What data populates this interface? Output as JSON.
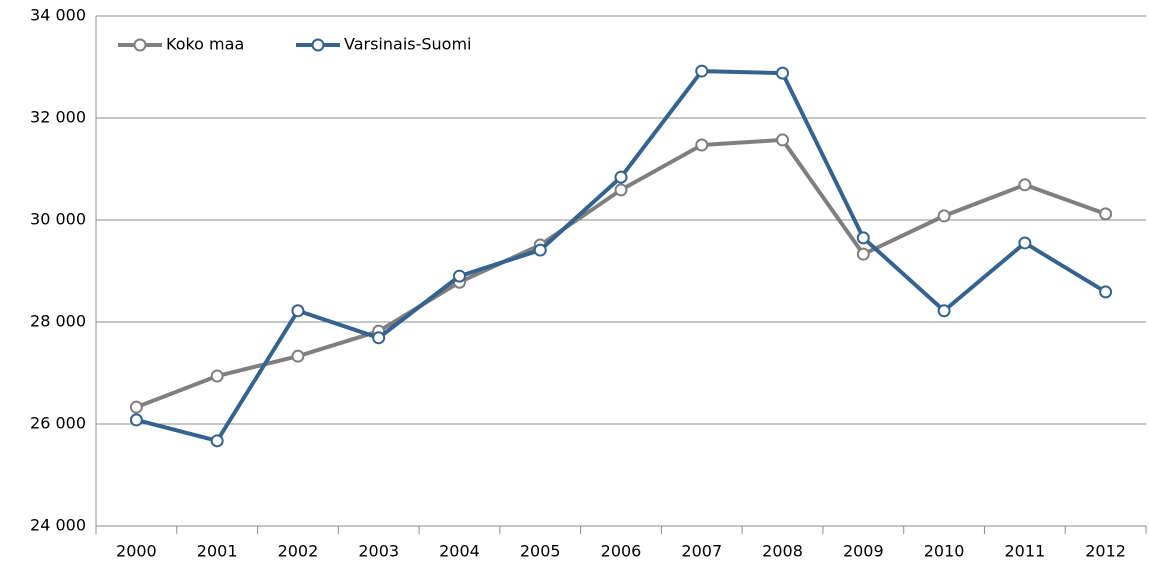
{
  "chart_data": {
    "type": "line",
    "categories": [
      "2000",
      "2001",
      "2002",
      "2003",
      "2004",
      "2005",
      "2006",
      "2007",
      "2008",
      "2009",
      "2010",
      "2011",
      "2012"
    ],
    "series": [
      {
        "name": "Koko maa",
        "color": "#7f7f7f",
        "values": [
          26330,
          26940,
          27330,
          27820,
          28780,
          29510,
          30590,
          31470,
          31570,
          29330,
          30080,
          30690,
          30120
        ]
      },
      {
        "name": "Varsinais-Suomi",
        "color": "#35628f",
        "values": [
          26080,
          25670,
          28220,
          27690,
          28900,
          29410,
          30840,
          32920,
          32880,
          29650,
          28220,
          29550,
          28590
        ]
      }
    ],
    "ylim": [
      24000,
      34000
    ],
    "yticks": [
      {
        "value": 24000,
        "label": "24 000"
      },
      {
        "value": 26000,
        "label": "26 000"
      },
      {
        "value": 28000,
        "label": "28 000"
      },
      {
        "value": 30000,
        "label": "30 000"
      },
      {
        "value": 32000,
        "label": "32 000"
      },
      {
        "value": 34000,
        "label": "34 000"
      }
    ],
    "grid": true,
    "legend": "top-left"
  }
}
